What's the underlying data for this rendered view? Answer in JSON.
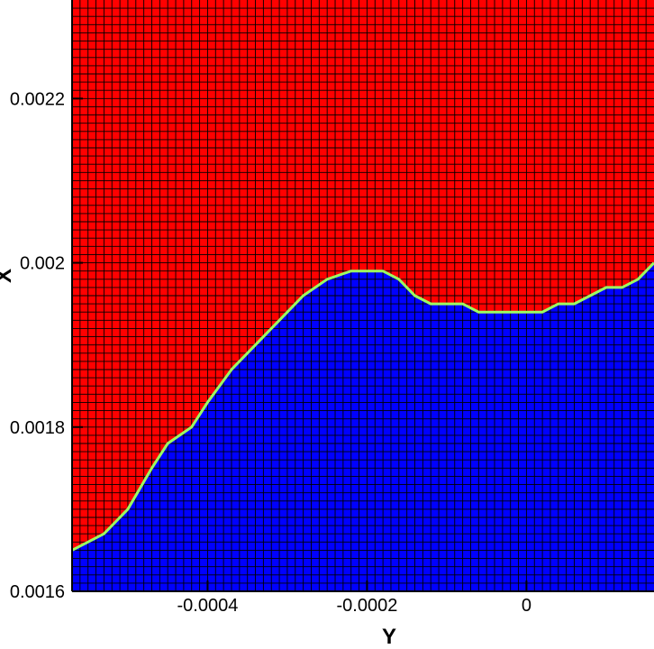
{
  "chart_data": {
    "type": "heatmap",
    "title": "",
    "xlabel": "Y",
    "ylabel": "X",
    "xlim": [
      -0.00057,
      0.00016
    ],
    "ylim": [
      0.0016,
      0.00232
    ],
    "x_ticks": [
      {
        "value": -0.0004,
        "label": "-0.0004"
      },
      {
        "value": -0.0002,
        "label": "-0.0002"
      },
      {
        "value": 0,
        "label": "0"
      }
    ],
    "y_ticks": [
      {
        "value": 0.0016,
        "label": "0.0016"
      },
      {
        "value": 0.0018,
        "label": "0.0018"
      },
      {
        "value": 0.002,
        "label": "0.002"
      },
      {
        "value": 0.0022,
        "label": "0.0022"
      }
    ],
    "colors": {
      "upper_phase": "#ff0000",
      "lower_phase": "#0000ff",
      "interface": "#9cff60",
      "grid": "#000000"
    },
    "interface": {
      "x": [
        -0.00057,
        -0.00053,
        -0.0005,
        -0.00047,
        -0.00045,
        -0.00042,
        -0.0004,
        -0.00037,
        -0.00034,
        -0.00031,
        -0.00028,
        -0.00025,
        -0.00022,
        -0.0002,
        -0.00018,
        -0.00016,
        -0.00014,
        -0.00012,
        -0.0001,
        -8e-05,
        -6e-05,
        -4e-05,
        -2e-05,
        0,
        2e-05,
        4e-05,
        6e-05,
        8e-05,
        0.0001,
        0.00012,
        0.00014,
        0.00016
      ],
      "y": [
        0.00165,
        0.00167,
        0.0017,
        0.00175,
        0.00178,
        0.0018,
        0.00183,
        0.00187,
        0.0019,
        0.00193,
        0.00196,
        0.00198,
        0.00199,
        0.00199,
        0.00199,
        0.00198,
        0.00196,
        0.00195,
        0.00195,
        0.00195,
        0.00194,
        0.00194,
        0.00194,
        0.00194,
        0.00194,
        0.00195,
        0.00195,
        0.00196,
        0.00197,
        0.00197,
        0.00198,
        0.002
      ]
    },
    "grid_spacing": 1e-05
  }
}
